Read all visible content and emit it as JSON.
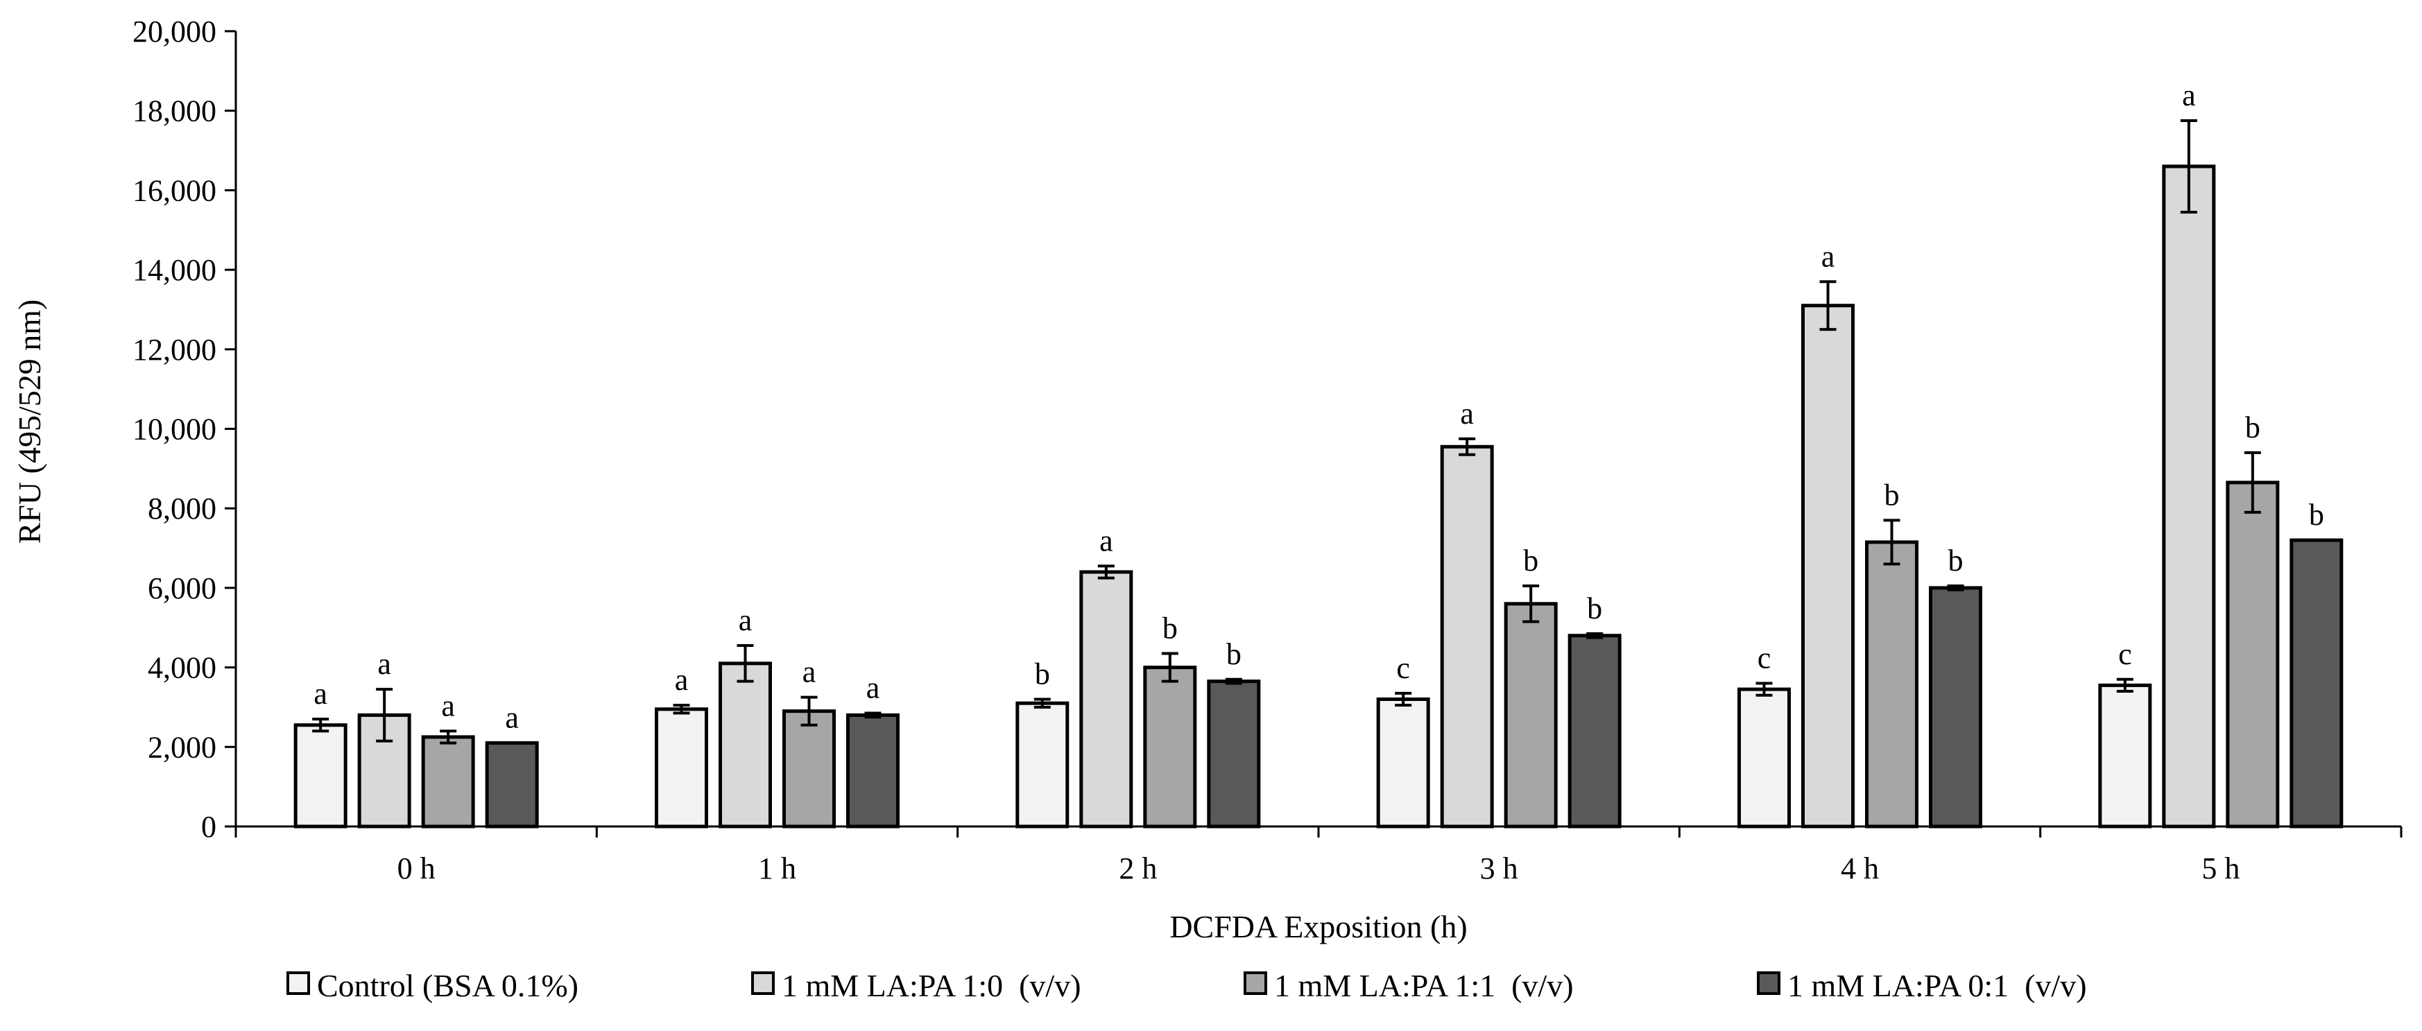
{
  "chart_data": {
    "type": "bar",
    "title": "",
    "xlabel": "DCFDA Exposition (h)",
    "ylabel": "RFU (495/529 nm)",
    "ylim": [
      0,
      20000
    ],
    "yticks": [
      0,
      2000,
      4000,
      6000,
      8000,
      10000,
      12000,
      14000,
      16000,
      18000,
      20000
    ],
    "ytick_labels": [
      "0",
      "2,000",
      "4,000",
      "6,000",
      "8,000",
      "10,000",
      "12,000",
      "14,000",
      "16,000",
      "18,000",
      "20,000"
    ],
    "grid": false,
    "legend_position": "bottom",
    "categories": [
      "0 h",
      "1 h",
      "2 h",
      "3 h",
      "4 h",
      "5 h"
    ],
    "series": [
      {
        "name": "Control (BSA 0.1%)",
        "color": "#f2f2f2",
        "values": [
          2550,
          2950,
          3100,
          3200,
          3450,
          3550
        ],
        "errors": [
          150,
          100,
          100,
          150,
          150,
          150
        ],
        "letters": [
          "a",
          "a",
          "b",
          "c",
          "c",
          "c"
        ]
      },
      {
        "name": "1 mM LA:PA 1:0  (v/v)",
        "color": "#d9d9d9",
        "values": [
          2800,
          4100,
          6400,
          9550,
          13100,
          16600
        ],
        "errors": [
          650,
          450,
          150,
          200,
          600,
          1150
        ],
        "letters": [
          "a",
          "a",
          "a",
          "a",
          "a",
          "a"
        ]
      },
      {
        "name": "1 mM LA:PA 1:1  (v/v)",
        "color": "#a6a6a6",
        "values": [
          2250,
          2900,
          4000,
          5600,
          7150,
          8650
        ],
        "errors": [
          150,
          350,
          350,
          450,
          550,
          750
        ],
        "letters": [
          "a",
          "a",
          "b",
          "b",
          "b",
          "b"
        ]
      },
      {
        "name": "1 mM LA:PA 0:1  (v/v)",
        "color": "#595959",
        "values": [
          2100,
          2800,
          3650,
          4800,
          6000,
          7200
        ],
        "errors": [
          0,
          50,
          50,
          50,
          50,
          0
        ],
        "letters": [
          "a",
          "a",
          "b",
          "b",
          "b",
          "b"
        ]
      }
    ]
  }
}
